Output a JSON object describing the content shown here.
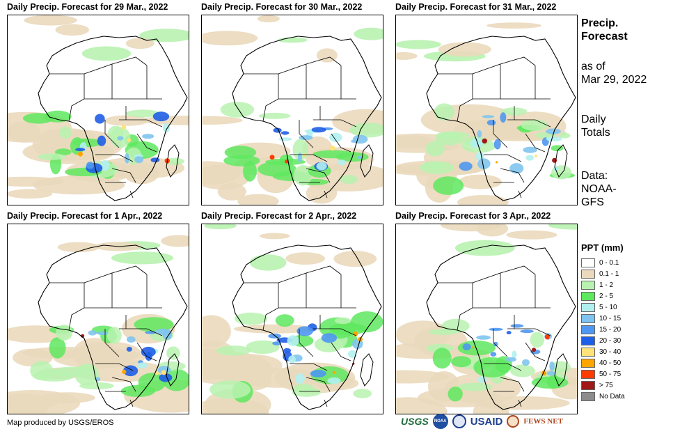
{
  "panels": [
    {
      "title": "Daily Precip. Forecast for 29 Mar., 2022"
    },
    {
      "title": "Daily Precip. Forecast for 30 Mar., 2022"
    },
    {
      "title": "Daily Precip. Forecast for 31 Mar., 2022"
    },
    {
      "title": "Daily Precip. Forecast for 1 Apr., 2022"
    },
    {
      "title": "Daily Precip. Forecast for 2 Apr., 2022"
    },
    {
      "title": "Daily Precip. Forecast for 3 Apr., 2022"
    }
  ],
  "sidebar": {
    "title_line1": "Precip.",
    "title_line2": "Forecast",
    "asof_line1": "as of",
    "asof_line2": "Mar 29, 2022",
    "daily_line1": "Daily",
    "daily_line2": "Totals",
    "data_line1": "Data:",
    "data_line2": "NOAA-",
    "data_line3": "GFS"
  },
  "legend": {
    "title": "PPT (mm)",
    "items": [
      {
        "label": "0 - 0.1",
        "color": "#ffffff"
      },
      {
        "label": "0.1 - 1",
        "color": "#ead9bc"
      },
      {
        "label": "1 - 2",
        "color": "#b8f2b0"
      },
      {
        "label": "2 - 5",
        "color": "#5fe85f"
      },
      {
        "label": "5 - 10",
        "color": "#b2f0f0"
      },
      {
        "label": "10 - 15",
        "color": "#7fc4ee"
      },
      {
        "label": "15 - 20",
        "color": "#4f97f0"
      },
      {
        "label": "20 - 30",
        "color": "#1f5ee6"
      },
      {
        "label": "30 - 40",
        "color": "#ffe27a"
      },
      {
        "label": "40 - 50",
        "color": "#ffa500"
      },
      {
        "label": "50 - 75",
        "color": "#ff3c00"
      },
      {
        "label": "> 75",
        "color": "#a01818"
      },
      {
        "label": "No Data",
        "color": "#8c8c8c"
      }
    ]
  },
  "footer": {
    "credit": "Map produced by USGS/EROS",
    "logos": [
      "USGS",
      "NOAA",
      "USAID",
      "FEWS NET"
    ]
  }
}
